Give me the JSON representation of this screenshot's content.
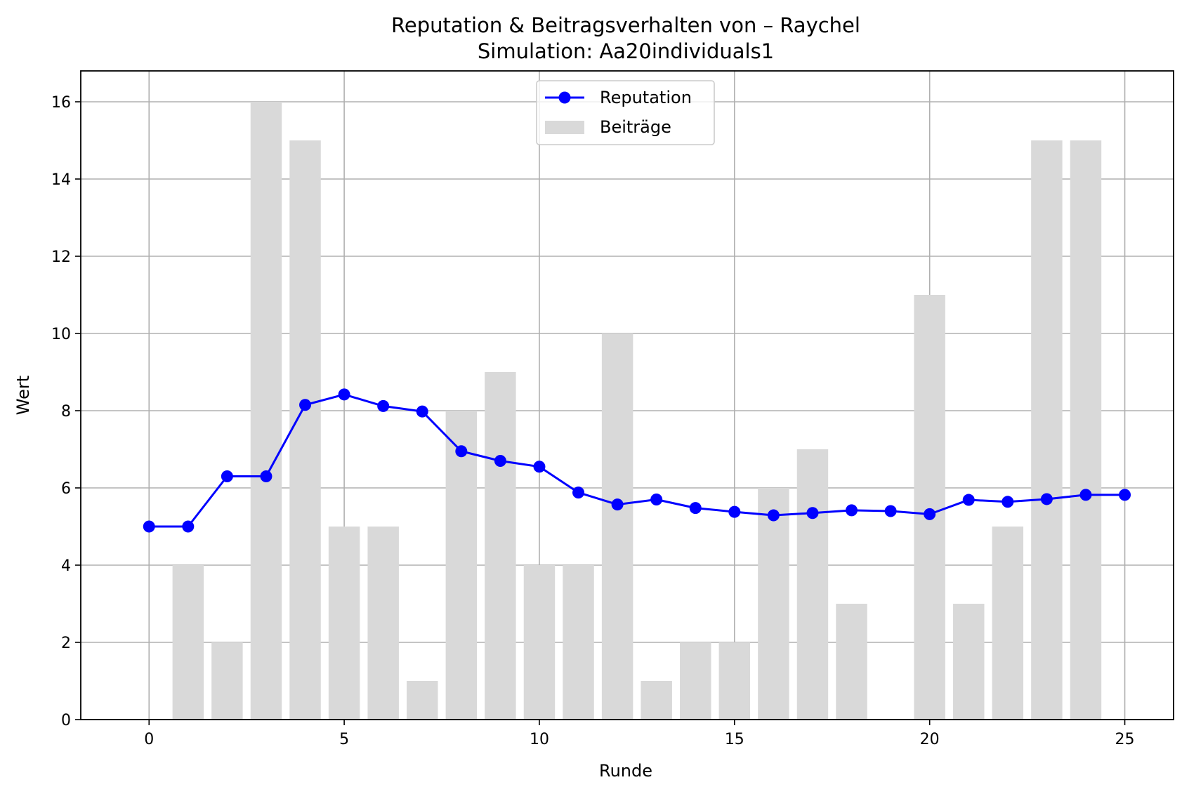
{
  "chart_data": {
    "type": "bar+line",
    "title": "Reputation & Beitragsverhalten von – Raychel",
    "subtitle": "Simulation: Aa20individuals1",
    "xlabel": "Runde",
    "ylabel": "Wert",
    "xlim": [
      -1.75,
      26.25
    ],
    "ylim": [
      0,
      16.8
    ],
    "xticks": [
      "0",
      "5",
      "10",
      "15",
      "20",
      "25"
    ],
    "yticks": [
      "0",
      "2",
      "4",
      "6",
      "8",
      "10",
      "12",
      "14",
      "16"
    ],
    "grid": true,
    "legend_position": "top-center",
    "series": [
      {
        "name": "Reputation",
        "kind": "line",
        "color": "#0000ff",
        "marker": "circle",
        "x": [
          0,
          1,
          2,
          3,
          4,
          5,
          6,
          7,
          8,
          9,
          10,
          11,
          12,
          13,
          14,
          15,
          16,
          17,
          18,
          19,
          20,
          21,
          22,
          23,
          24,
          25
        ],
        "values": [
          5.0,
          5.0,
          6.3,
          6.3,
          8.15,
          8.42,
          8.12,
          7.98,
          6.95,
          6.7,
          6.55,
          5.88,
          5.57,
          5.7,
          5.48,
          5.38,
          5.29,
          5.35,
          5.42,
          5.4,
          5.32,
          5.69,
          5.64,
          5.71,
          5.82,
          5.82
        ]
      },
      {
        "name": "Beiträge",
        "kind": "bar",
        "color": "#d9d9d9",
        "x": [
          1,
          2,
          3,
          4,
          5,
          6,
          7,
          8,
          9,
          10,
          11,
          12,
          13,
          14,
          15,
          16,
          17,
          18,
          19,
          20,
          21,
          22,
          23,
          24
        ],
        "values": [
          4,
          2,
          16,
          15,
          5,
          5,
          1,
          8,
          9,
          4,
          4,
          10,
          1,
          2,
          2,
          6,
          7,
          3,
          0,
          11,
          3,
          5,
          15,
          15
        ]
      }
    ]
  }
}
